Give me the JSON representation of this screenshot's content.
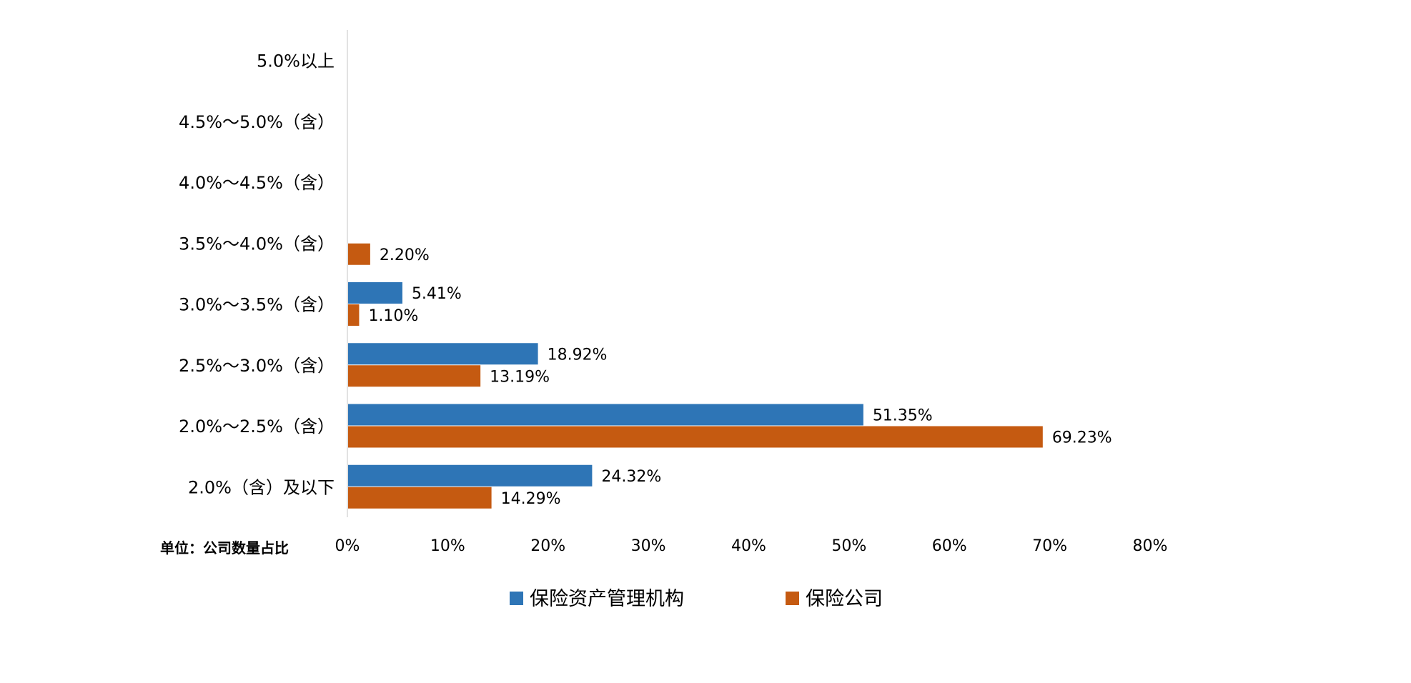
{
  "colors": {
    "series_0": "#2E75B6",
    "series_1": "#C55A11",
    "axis": "#D9D9D9"
  },
  "unit_label": "单位：公司数量占比",
  "chart_data": {
    "type": "bar",
    "orientation": "horizontal",
    "categories": [
      "5.0%以上",
      "4.5%～5.0%（含）",
      "4.0%～4.5%（含）",
      "3.5%～4.0%（含）",
      "3.0%～3.5%（含）",
      "2.5%～3.0%（含）",
      "2.0%～2.5%（含）",
      "2.0%（含）及以下"
    ],
    "series": [
      {
        "name": "保险资产管理机构",
        "values": [
          null,
          null,
          null,
          null,
          5.41,
          18.92,
          51.35,
          24.32
        ],
        "labels": [
          "",
          "",
          "",
          "",
          "5.41%",
          "18.92%",
          "51.35%",
          "24.32%"
        ]
      },
      {
        "name": "保险公司",
        "values": [
          null,
          null,
          null,
          2.2,
          1.1,
          13.19,
          69.23,
          14.29
        ],
        "labels": [
          "",
          "",
          "",
          "2.20%",
          "1.10%",
          "13.19%",
          "69.23%",
          "14.29%"
        ]
      }
    ],
    "xlim": [
      0,
      80
    ],
    "xticks": [
      "0%",
      "10%",
      "20%",
      "30%",
      "40%",
      "50%",
      "60%",
      "70%",
      "80%"
    ],
    "grid": false,
    "legend_position": "bottom"
  }
}
